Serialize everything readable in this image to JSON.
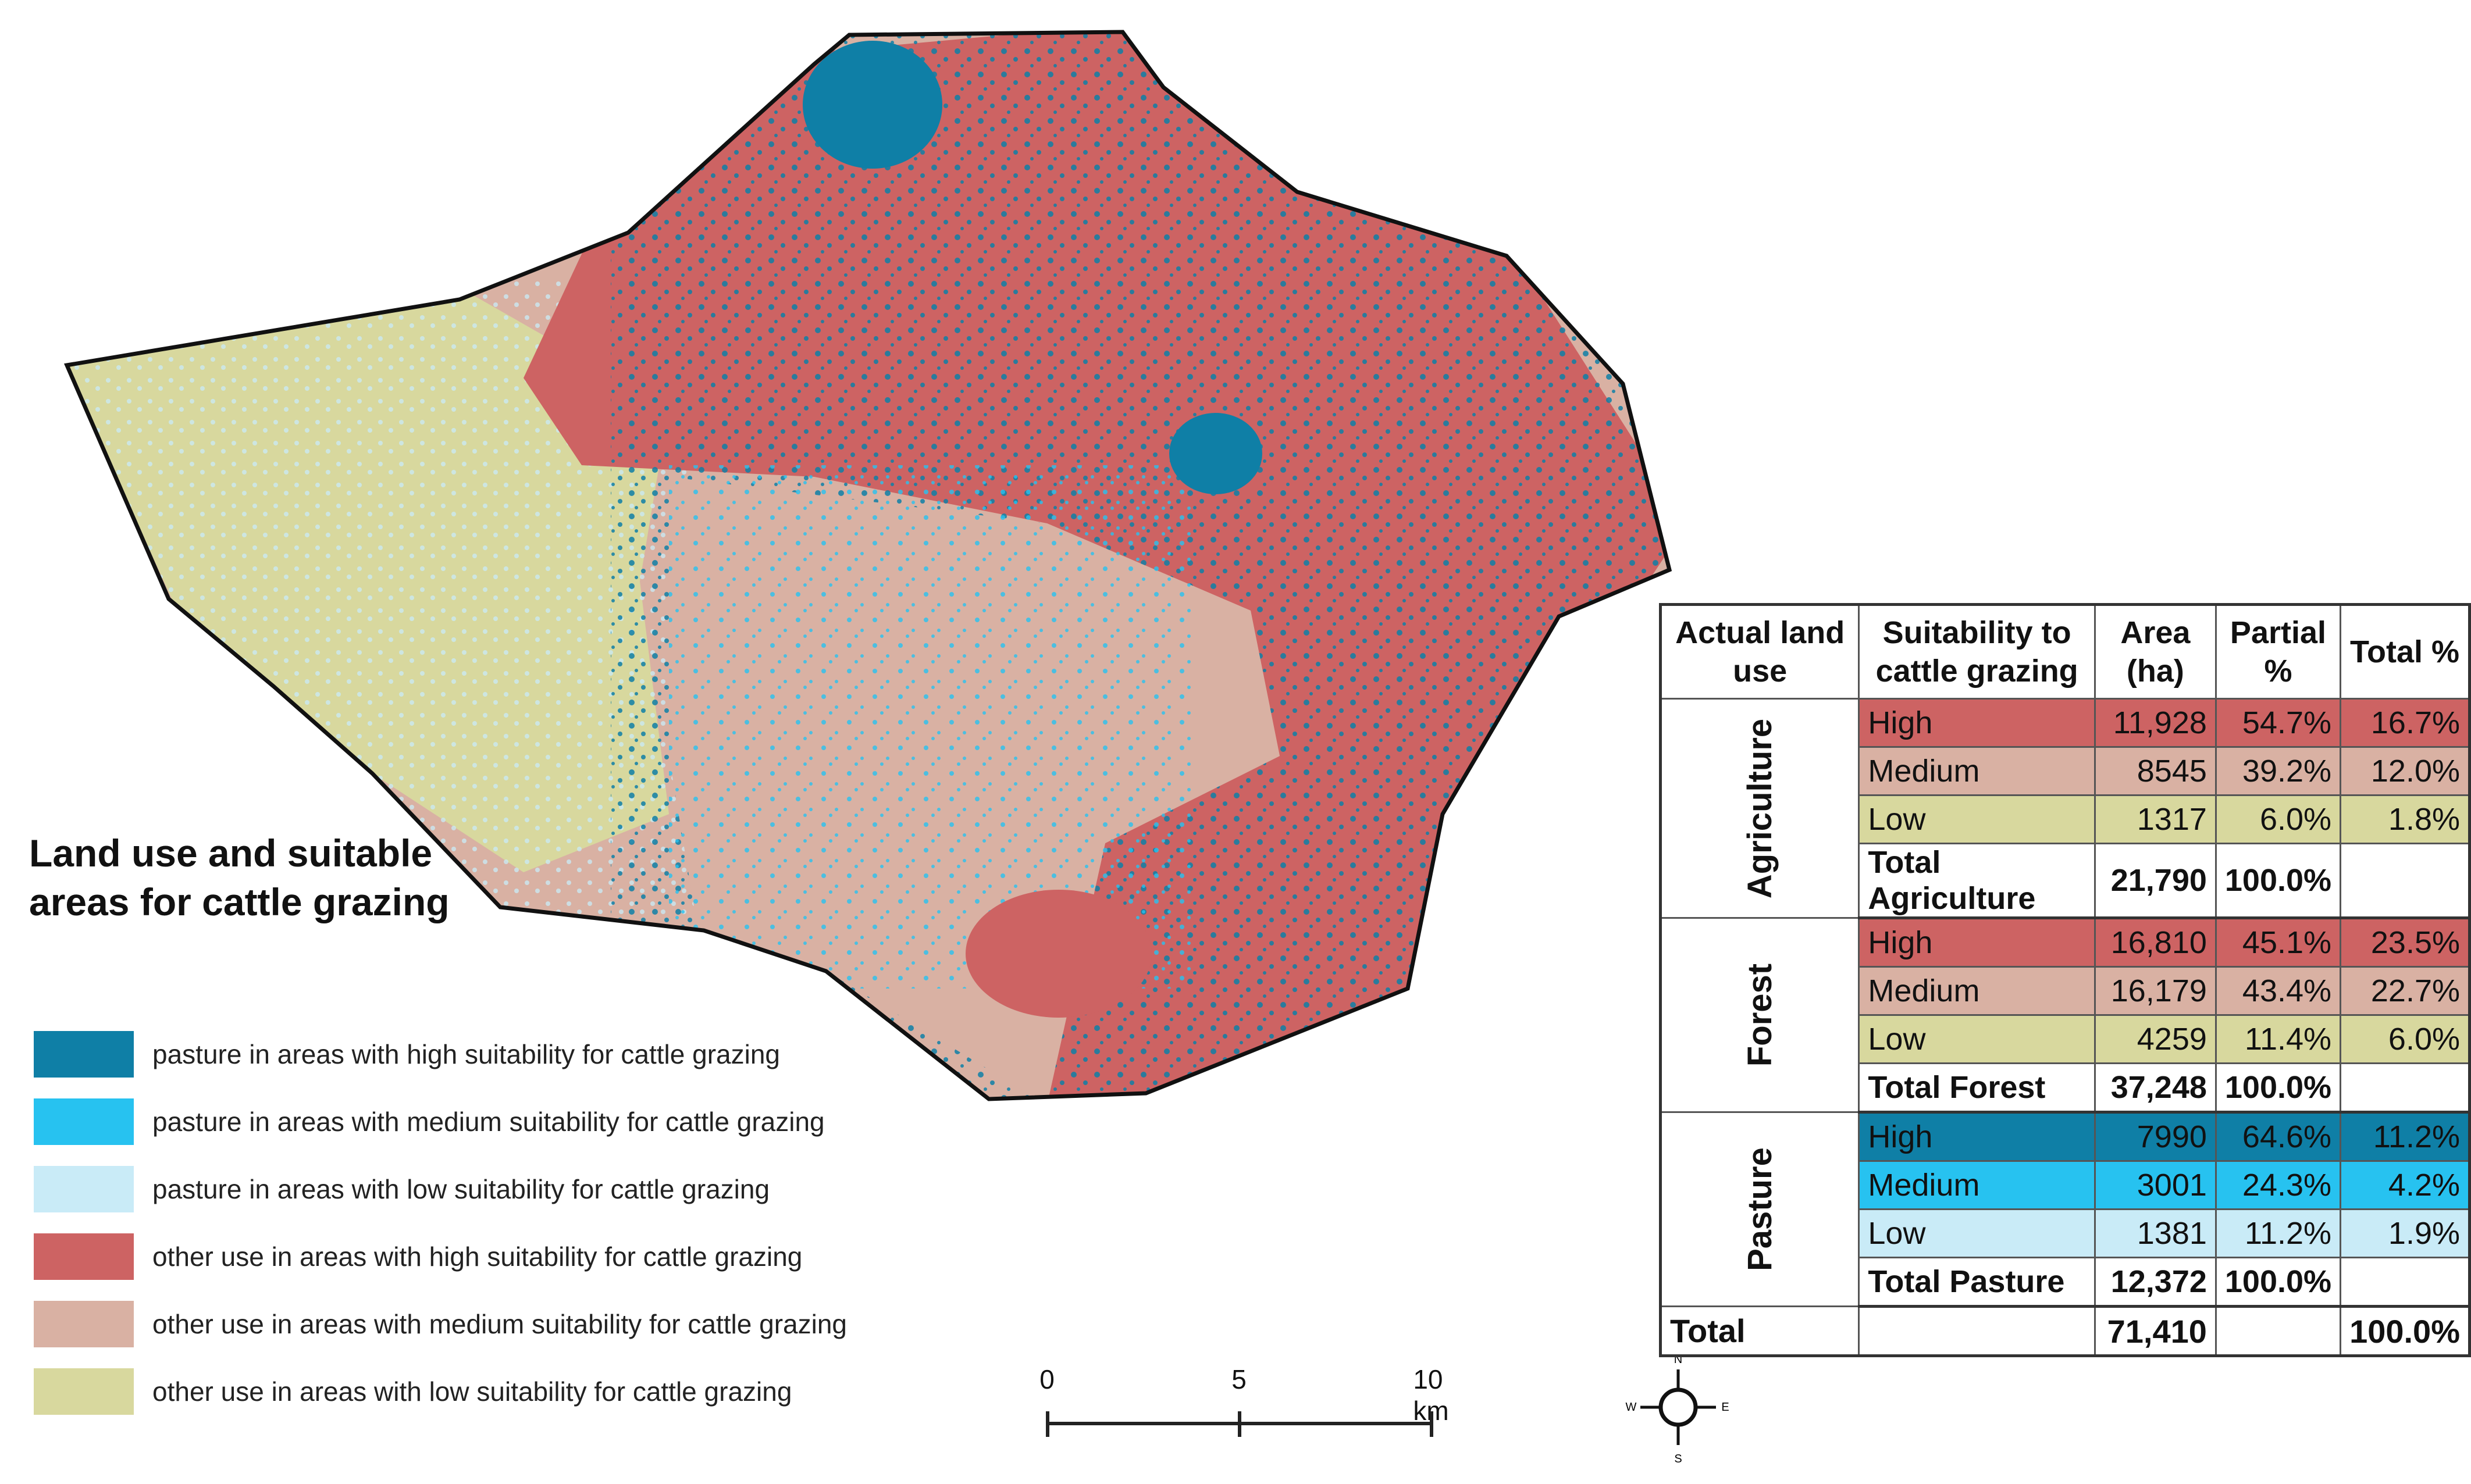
{
  "title_line1": "Land use and suitable",
  "title_line2": "areas for cattle grazing",
  "colors": {
    "pasture_high": "#0f7fa6",
    "pasture_medium": "#27c2f0",
    "pasture_low": "#c9ebf7",
    "other_high": "#cd6363",
    "other_medium": "#d9b1a3",
    "other_low": "#d8d89e"
  },
  "legend": [
    {
      "label": "pasture in areas with high suitability for cattle grazing",
      "color": "#0f7fa6"
    },
    {
      "label": "pasture in areas with medium suitability for cattle grazing",
      "color": "#27c2f0"
    },
    {
      "label": "pasture in areas with low suitability for cattle grazing",
      "color": "#c9ebf7"
    },
    {
      "label": "other use in areas with high suitability for cattle grazing",
      "color": "#cd6363"
    },
    {
      "label": "other use in areas with medium suitability for cattle grazing",
      "color": "#d9b1a3"
    },
    {
      "label": "other use in areas with low suitability for cattle grazing",
      "color": "#d8d89e"
    }
  ],
  "scale": {
    "ticks": [
      "0",
      "5",
      "10 km"
    ]
  },
  "compass": {
    "n": "N",
    "s": "S",
    "e": "E",
    "w": "W"
  },
  "table": {
    "headers": {
      "land_use": "Actual land use",
      "suitability": "Suitability to cattle grazing",
      "area": "Area (ha)",
      "partial": "Partial %",
      "total": "Total %"
    },
    "groups": [
      {
        "name": "Agriculture",
        "rows": [
          {
            "suit": "High",
            "area": "11,928",
            "partial": "54.7%",
            "total": "16.7%"
          },
          {
            "suit": "Medium",
            "area": "8545",
            "partial": "39.2%",
            "total": "12.0%"
          },
          {
            "suit": "Low",
            "area": "1317",
            "partial": "6.0%",
            "total": "1.8%"
          }
        ],
        "total_label": "Total Agriculture",
        "total_area": "21,790",
        "total_partial": "100.0%"
      },
      {
        "name": "Forest",
        "rows": [
          {
            "suit": "High",
            "area": "16,810",
            "partial": "45.1%",
            "total": "23.5%"
          },
          {
            "suit": "Medium",
            "area": "16,179",
            "partial": "43.4%",
            "total": "22.7%"
          },
          {
            "suit": "Low",
            "area": "4259",
            "partial": "11.4%",
            "total": "6.0%"
          }
        ],
        "total_label": "Total Forest",
        "total_area": "37,248",
        "total_partial": "100.0%"
      },
      {
        "name": "Pasture",
        "rows": [
          {
            "suit": "High",
            "area": "7990",
            "partial": "64.6%",
            "total": "11.2%"
          },
          {
            "suit": "Medium",
            "area": "3001",
            "partial": "24.3%",
            "total": "4.2%"
          },
          {
            "suit": "Low",
            "area": "1381",
            "partial": "11.2%",
            "total": "1.9%"
          }
        ],
        "total_label": "Total Pasture",
        "total_area": "12,372",
        "total_partial": "100.0%"
      }
    ],
    "grand_total": {
      "label": "Total",
      "area": "71,410",
      "total": "100.0%"
    }
  }
}
